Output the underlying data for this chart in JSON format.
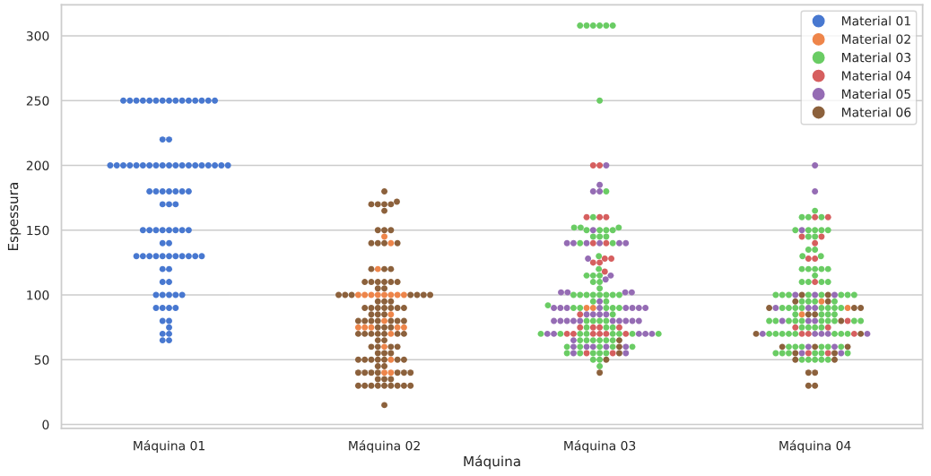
{
  "chart_data": {
    "type": "scatter",
    "xlabel": "Máquina",
    "ylabel": "Espessura",
    "categories": [
      "Máquina 01",
      "Máquina 02",
      "Máquina 03",
      "Máquina 04"
    ],
    "ylim": [
      -3,
      324
    ],
    "yticks": [
      0,
      50,
      100,
      150,
      200,
      250,
      300
    ],
    "grid": "y",
    "legend": "top right",
    "marker": "circle",
    "series": [
      {
        "name": "Material 01",
        "color": "#4878d0",
        "values": [
          250,
          250,
          250,
          250,
          250,
          250,
          250,
          250,
          250,
          250,
          250,
          250,
          250,
          250,
          250,
          220,
          220,
          200,
          200,
          200,
          200,
          200,
          200,
          200,
          200,
          200,
          200,
          200,
          200,
          200,
          200,
          200,
          200,
          200,
          200,
          200,
          180,
          180,
          180,
          180,
          180,
          180,
          180,
          170,
          170,
          170,
          150,
          150,
          150,
          150,
          150,
          150,
          150,
          150,
          140,
          140,
          130,
          130,
          130,
          130,
          130,
          130,
          130,
          130,
          130,
          130,
          130,
          120,
          120,
          110,
          110,
          100,
          100,
          100,
          100,
          100,
          90,
          90,
          90,
          90,
          80,
          80,
          75,
          70,
          70,
          65,
          65
        ],
        "x": [
          "Máquina 01",
          "Máquina 01",
          "Máquina 01",
          "Máquina 01",
          "Máquina 01",
          "Máquina 01",
          "Máquina 01",
          "Máquina 01",
          "Máquina 01",
          "Máquina 01",
          "Máquina 01",
          "Máquina 01",
          "Máquina 01",
          "Máquina 01",
          "Máquina 01",
          "Máquina 01",
          "Máquina 01",
          "Máquina 01",
          "Máquina 01",
          "Máquina 01",
          "Máquina 01",
          "Máquina 01",
          "Máquina 01",
          "Máquina 01",
          "Máquina 01",
          "Máquina 01",
          "Máquina 01",
          "Máquina 01",
          "Máquina 01",
          "Máquina 01",
          "Máquina 01",
          "Máquina 01",
          "Máquina 01",
          "Máquina 01",
          "Máquina 01",
          "Máquina 01",
          "Máquina 01",
          "Máquina 01",
          "Máquina 01",
          "Máquina 01",
          "Máquina 01",
          "Máquina 01",
          "Máquina 01",
          "Máquina 01",
          "Máquina 01",
          "Máquina 01",
          "Máquina 01",
          "Máquina 01",
          "Máquina 01",
          "Máquina 01",
          "Máquina 01",
          "Máquina 01",
          "Máquina 01",
          "Máquina 01",
          "Máquina 01",
          "Máquina 01",
          "Máquina 01",
          "Máquina 01",
          "Máquina 01",
          "Máquina 01",
          "Máquina 01",
          "Máquina 01",
          "Máquina 01",
          "Máquina 01",
          "Máquina 01",
          "Máquina 01",
          "Máquina 01",
          "Máquina 01",
          "Máquina 01",
          "Máquina 01",
          "Máquina 01",
          "Máquina 01",
          "Máquina 01",
          "Máquina 01",
          "Máquina 01",
          "Máquina 01",
          "Máquina 01",
          "Máquina 01",
          "Máquina 01",
          "Máquina 01",
          "Máquina 01",
          "Máquina 01",
          "Máquina 01",
          "Máquina 01",
          "Máquina 01",
          "Máquina 01",
          "Máquina 01"
        ]
      },
      {
        "name": "Material 02",
        "color": "#ee854a",
        "values": [
          145,
          140,
          120,
          100,
          100,
          100,
          100,
          100,
          100,
          100,
          100,
          85,
          80,
          75,
          75,
          75,
          75,
          75,
          70,
          60,
          50,
          40,
          40,
          90,
          90,
          95,
          90,
          85
        ],
        "x": [
          "Máquina 02",
          "Máquina 02",
          "Máquina 02",
          "Máquina 02",
          "Máquina 02",
          "Máquina 02",
          "Máquina 02",
          "Máquina 02",
          "Máquina 02",
          "Máquina 02",
          "Máquina 02",
          "Máquina 02",
          "Máquina 02",
          "Máquina 02",
          "Máquina 02",
          "Máquina 02",
          "Máquina 02",
          "Máquina 02",
          "Máquina 02",
          "Máquina 02",
          "Máquina 02",
          "Máquina 02",
          "Máquina 02",
          "Máquina 03",
          "Máquina 03",
          "Máquina 04",
          "Máquina 04",
          "Máquina 04"
        ]
      },
      {
        "name": "Material 03",
        "color": "#6acc64",
        "values": [
          308,
          308,
          308,
          308,
          308,
          308,
          250,
          180,
          160,
          152,
          152,
          152,
          150,
          150,
          150,
          150,
          145,
          145,
          145,
          140,
          140,
          130,
          120,
          115,
          115,
          115,
          110,
          110,
          105,
          100,
          100,
          100,
          100,
          100,
          100,
          100,
          100,
          95,
          95,
          92,
          90,
          90,
          90,
          90,
          90,
          85,
          80,
          80,
          80,
          80,
          75,
          75,
          75,
          70,
          70,
          70,
          70,
          70,
          70,
          70,
          70,
          65,
          65,
          65,
          65,
          65,
          65,
          60,
          60,
          60,
          60,
          60,
          55,
          55,
          55,
          55,
          55,
          50,
          50,
          45,
          165,
          160,
          160,
          160,
          150,
          150,
          150,
          150,
          150,
          145,
          145,
          135,
          135,
          130,
          130,
          120,
          120,
          120,
          120,
          120,
          115,
          110,
          110,
          110,
          110,
          100,
          100,
          100,
          100,
          100,
          100,
          100,
          100,
          95,
          95,
          95,
          95,
          90,
          90,
          90,
          90,
          90,
          90,
          90,
          90,
          85,
          85,
          85,
          85,
          80,
          80,
          80,
          80,
          80,
          80,
          80,
          80,
          80,
          80,
          75,
          75,
          75,
          75,
          70,
          70,
          70,
          70,
          70,
          70,
          70,
          70,
          60,
          60,
          60,
          60,
          60,
          60,
          55,
          55,
          55,
          55,
          55,
          55,
          50,
          50,
          50,
          50,
          50
        ],
        "x": [
          "Máquina 03",
          "Máquina 03",
          "Máquina 03",
          "Máquina 03",
          "Máquina 03",
          "Máquina 03",
          "Máquina 03",
          "Máquina 03",
          "Máquina 03",
          "Máquina 03",
          "Máquina 03",
          "Máquina 03",
          "Máquina 03",
          "Máquina 03",
          "Máquina 03",
          "Máquina 03",
          "Máquina 03",
          "Máquina 03",
          "Máquina 03",
          "Máquina 03",
          "Máquina 03",
          "Máquina 03",
          "Máquina 03",
          "Máquina 03",
          "Máquina 03",
          "Máquina 03",
          "Máquina 03",
          "Máquina 03",
          "Máquina 03",
          "Máquina 03",
          "Máquina 03",
          "Máquina 03",
          "Máquina 03",
          "Máquina 03",
          "Máquina 03",
          "Máquina 03",
          "Máquina 03",
          "Máquina 03",
          "Máquina 03",
          "Máquina 03",
          "Máquina 03",
          "Máquina 03",
          "Máquina 03",
          "Máquina 03",
          "Máquina 03",
          "Máquina 03",
          "Máquina 03",
          "Máquina 03",
          "Máquina 03",
          "Máquina 03",
          "Máquina 03",
          "Máquina 03",
          "Máquina 03",
          "Máquina 03",
          "Máquina 03",
          "Máquina 03",
          "Máquina 03",
          "Máquina 03",
          "Máquina 03",
          "Máquina 03",
          "Máquina 03",
          "Máquina 03",
          "Máquina 03",
          "Máquina 03",
          "Máquina 03",
          "Máquina 03",
          "Máquina 03",
          "Máquina 03",
          "Máquina 03",
          "Máquina 03",
          "Máquina 03",
          "Máquina 03",
          "Máquina 03",
          "Máquina 03",
          "Máquina 03",
          "Máquina 03",
          "Máquina 03",
          "Máquina 03",
          "Máquina 03",
          "Máquina 03",
          "Máquina 04",
          "Máquina 04",
          "Máquina 04",
          "Máquina 04",
          "Máquina 04",
          "Máquina 04",
          "Máquina 04",
          "Máquina 04",
          "Máquina 04",
          "Máquina 04",
          "Máquina 04",
          "Máquina 04",
          "Máquina 04",
          "Máquina 04",
          "Máquina 04",
          "Máquina 04",
          "Máquina 04",
          "Máquina 04",
          "Máquina 04",
          "Máquina 04",
          "Máquina 04",
          "Máquina 04",
          "Máquina 04",
          "Máquina 04",
          "Máquina 04",
          "Máquina 04",
          "Máquina 04",
          "Máquina 04",
          "Máquina 04",
          "Máquina 04",
          "Máquina 04",
          "Máquina 04",
          "Máquina 04",
          "Máquina 04",
          "Máquina 04",
          "Máquina 04",
          "Máquina 04",
          "Máquina 04",
          "Máquina 04",
          "Máquina 04",
          "Máquina 04",
          "Máquina 04",
          "Máquina 04",
          "Máquina 04",
          "Máquina 04",
          "Máquina 04",
          "Máquina 04",
          "Máquina 04",
          "Máquina 04",
          "Máquina 04",
          "Máquina 04",
          "Máquina 04",
          "Máquina 04",
          "Máquina 04",
          "Máquina 04",
          "Máquina 04",
          "Máquina 04",
          "Máquina 04",
          "Máquina 04",
          "Máquina 04",
          "Máquina 04",
          "Máquina 04",
          "Máquina 04",
          "Máquina 04",
          "Máquina 04",
          "Máquina 04",
          "Máquina 04",
          "Máquina 04",
          "Máquina 04",
          "Máquina 04",
          "Máquina 04",
          "Máquina 04",
          "Máquina 04",
          "Máquina 04",
          "Máquina 04",
          "Máquina 04",
          "Máquina 04",
          "Máquina 04",
          "Máquina 04",
          "Máquina 04",
          "Máquina 04",
          "Máquina 04",
          "Máquina 04",
          "Máquina 04",
          "Máquina 04",
          "Máquina 04",
          "Máquina 04",
          "Máquina 04"
        ]
      },
      {
        "name": "Material 04",
        "color": "#d65f5f",
        "values": [
          200,
          200,
          160,
          160,
          160,
          140,
          140,
          128,
          128,
          125,
          125,
          118,
          85,
          75,
          75,
          75,
          75,
          70,
          70,
          70,
          70,
          70,
          70,
          55,
          55,
          160,
          160,
          145,
          145,
          140,
          128,
          128,
          110,
          80,
          75,
          75,
          70,
          70,
          70,
          55,
          55
        ],
        "x": [
          "Máquina 03",
          "Máquina 03",
          "Máquina 03",
          "Máquina 03",
          "Máquina 03",
          "Máquina 03",
          "Máquina 03",
          "Máquina 03",
          "Máquina 03",
          "Máquina 03",
          "Máquina 03",
          "Máquina 03",
          "Máquina 03",
          "Máquina 03",
          "Máquina 03",
          "Máquina 03",
          "Máquina 03",
          "Máquina 03",
          "Máquina 03",
          "Máquina 03",
          "Máquina 03",
          "Máquina 03",
          "Máquina 03",
          "Máquina 03",
          "Máquina 03",
          "Máquina 04",
          "Máquina 04",
          "Máquina 04",
          "Máquina 04",
          "Máquina 04",
          "Máquina 04",
          "Máquina 04",
          "Máquina 04",
          "Máquina 04",
          "Máquina 04",
          "Máquina 04",
          "Máquina 04",
          "Máquina 04",
          "Máquina 04",
          "Máquina 04",
          "Máquina 04"
        ]
      },
      {
        "name": "Material 05",
        "color": "#956cb4",
        "values": [
          200,
          185,
          180,
          180,
          150,
          140,
          140,
          140,
          140,
          140,
          140,
          128,
          115,
          112,
          102,
          102,
          102,
          102,
          95,
          90,
          90,
          90,
          90,
          90,
          90,
          90,
          90,
          85,
          85,
          85,
          85,
          80,
          80,
          80,
          80,
          80,
          80,
          80,
          80,
          80,
          80,
          70,
          70,
          70,
          70,
          70,
          65,
          60,
          60,
          60,
          60,
          60,
          55,
          55,
          200,
          180,
          150,
          100,
          100,
          100,
          90,
          90,
          90,
          80,
          80,
          80,
          70,
          70,
          70,
          70,
          70,
          60,
          60,
          55,
          55
        ],
        "x": [
          "Máquina 03",
          "Máquina 03",
          "Máquina 03",
          "Máquina 03",
          "Máquina 03",
          "Máquina 03",
          "Máquina 03",
          "Máquina 03",
          "Máquina 03",
          "Máquina 03",
          "Máquina 03",
          "Máquina 03",
          "Máquina 03",
          "Máquina 03",
          "Máquina 03",
          "Máquina 03",
          "Máquina 03",
          "Máquina 03",
          "Máquina 03",
          "Máquina 03",
          "Máquina 03",
          "Máquina 03",
          "Máquina 03",
          "Máquina 03",
          "Máquina 03",
          "Máquina 03",
          "Máquina 03",
          "Máquina 03",
          "Máquina 03",
          "Máquina 03",
          "Máquina 03",
          "Máquina 03",
          "Máquina 03",
          "Máquina 03",
          "Máquina 03",
          "Máquina 03",
          "Máquina 03",
          "Máquina 03",
          "Máquina 03",
          "Máquina 03",
          "Máquina 03",
          "Máquina 03",
          "Máquina 03",
          "Máquina 03",
          "Máquina 03",
          "Máquina 03",
          "Máquina 03",
          "Máquina 03",
          "Máquina 03",
          "Máquina 03",
          "Máquina 03",
          "Máquina 03",
          "Máquina 03",
          "Máquina 03",
          "Máquina 04",
          "Máquina 04",
          "Máquina 04",
          "Máquina 04",
          "Máquina 04",
          "Máquina 04",
          "Máquina 04",
          "Máquina 04",
          "Máquina 04",
          "Máquina 04",
          "Máquina 04",
          "Máquina 04",
          "Máquina 04",
          "Máquina 04",
          "Máquina 04",
          "Máquina 04",
          "Máquina 04",
          "Máquina 04",
          "Máquina 04",
          "Máquina 04",
          "Máquina 04"
        ]
      },
      {
        "name": "Material 06",
        "color": "#8c613c",
        "values": [
          180,
          172,
          170,
          170,
          170,
          170,
          165,
          150,
          150,
          150,
          140,
          140,
          140,
          140,
          120,
          120,
          120,
          110,
          110,
          110,
          110,
          110,
          110,
          105,
          105,
          100,
          100,
          100,
          100,
          100,
          100,
          100,
          95,
          95,
          95,
          90,
          90,
          90,
          90,
          90,
          90,
          90,
          85,
          85,
          85,
          80,
          80,
          80,
          80,
          80,
          80,
          80,
          75,
          75,
          75,
          70,
          70,
          70,
          70,
          70,
          70,
          70,
          65,
          65,
          60,
          60,
          60,
          60,
          55,
          55,
          55,
          50,
          50,
          50,
          50,
          50,
          50,
          50,
          45,
          45,
          40,
          40,
          40,
          40,
          40,
          40,
          40,
          35,
          35,
          35,
          30,
          30,
          30,
          30,
          30,
          30,
          30,
          30,
          30,
          15,
          65,
          60,
          55,
          50,
          40,
          100,
          100,
          95,
          95,
          90,
          90,
          90,
          85,
          85,
          80,
          70,
          70,
          60,
          60,
          60,
          55,
          55,
          50,
          50,
          40,
          40,
          30,
          30
        ],
        "x": [
          "Máquina 02",
          "Máquina 02",
          "Máquina 02",
          "Máquina 02",
          "Máquina 02",
          "Máquina 02",
          "Máquina 02",
          "Máquina 02",
          "Máquina 02",
          "Máquina 02",
          "Máquina 02",
          "Máquina 02",
          "Máquina 02",
          "Máquina 02",
          "Máquina 02",
          "Máquina 02",
          "Máquina 02",
          "Máquina 02",
          "Máquina 02",
          "Máquina 02",
          "Máquina 02",
          "Máquina 02",
          "Máquina 02",
          "Máquina 02",
          "Máquina 02",
          "Máquina 02",
          "Máquina 02",
          "Máquina 02",
          "Máquina 02",
          "Máquina 02",
          "Máquina 02",
          "Máquina 02",
          "Máquina 02",
          "Máquina 02",
          "Máquina 02",
          "Máquina 02",
          "Máquina 02",
          "Máquina 02",
          "Máquina 02",
          "Máquina 02",
          "Máquina 02",
          "Máquina 02",
          "Máquina 02",
          "Máquina 02",
          "Máquina 02",
          "Máquina 02",
          "Máquina 02",
          "Máquina 02",
          "Máquina 02",
          "Máquina 02",
          "Máquina 02",
          "Máquina 02",
          "Máquina 02",
          "Máquina 02",
          "Máquina 02",
          "Máquina 02",
          "Máquina 02",
          "Máquina 02",
          "Máquina 02",
          "Máquina 02",
          "Máquina 02",
          "Máquina 02",
          "Máquina 02",
          "Máquina 02",
          "Máquina 02",
          "Máquina 02",
          "Máquina 02",
          "Máquina 02",
          "Máquina 02",
          "Máquina 02",
          "Máquina 02",
          "Máquina 02",
          "Máquina 02",
          "Máquina 02",
          "Máquina 02",
          "Máquina 02",
          "Máquina 02",
          "Máquina 02",
          "Máquina 02",
          "Máquina 02",
          "Máquina 02",
          "Máquina 02",
          "Máquina 02",
          "Máquina 02",
          "Máquina 02",
          "Máquina 02",
          "Máquina 02",
          "Máquina 02",
          "Máquina 02",
          "Máquina 02",
          "Máquina 02",
          "Máquina 02",
          "Máquina 02",
          "Máquina 02",
          "Máquina 02",
          "Máquina 02",
          "Máquina 02",
          "Máquina 02",
          "Máquina 02",
          "Máquina 02",
          "Máquina 03",
          "Máquina 03",
          "Máquina 03",
          "Máquina 03",
          "Máquina 03",
          "Máquina 04",
          "Máquina 04",
          "Máquina 04",
          "Máquina 04",
          "Máquina 04",
          "Máquina 04",
          "Máquina 04",
          "Máquina 04",
          "Máquina 04",
          "Máquina 04",
          "Máquina 04",
          "Máquina 04",
          "Máquina 04",
          "Máquina 04",
          "Máquina 04",
          "Máquina 04",
          "Máquina 04",
          "Máquina 04",
          "Máquina 04",
          "Máquina 04",
          "Máquina 04",
          "Máquina 04",
          "Máquina 04"
        ]
      }
    ]
  }
}
